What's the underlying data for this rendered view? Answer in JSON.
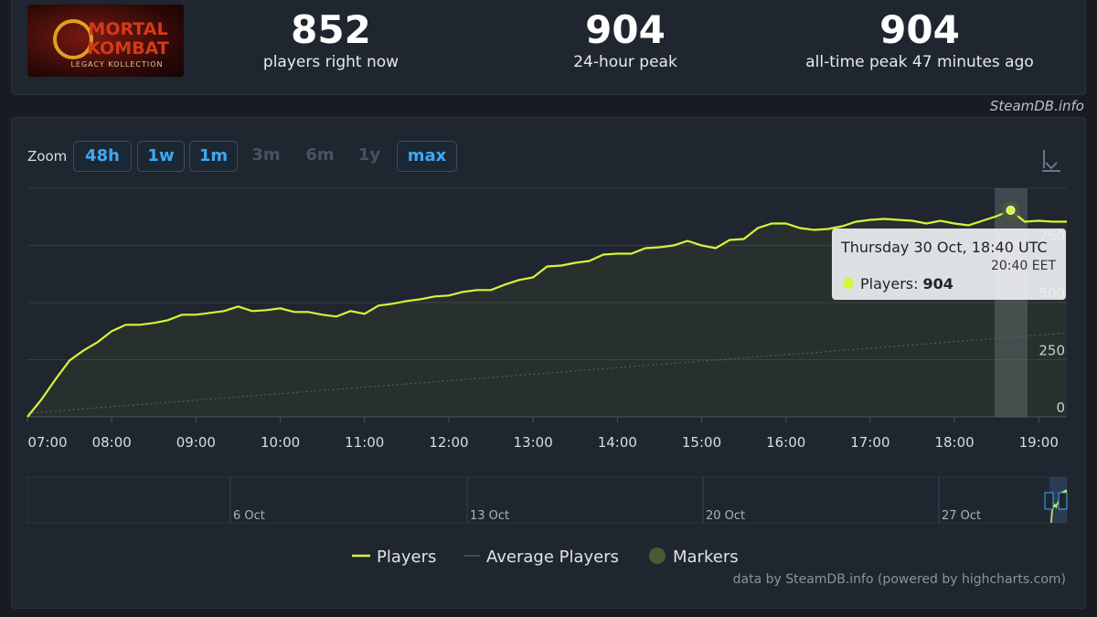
{
  "logo": {
    "line1": "MORTAL",
    "line2": "KOMBAT",
    "line3": "LEGACY KOLLECTION"
  },
  "stats": [
    {
      "value": 852,
      "label": "players right now"
    },
    {
      "value": 904,
      "label": "24-hour peak"
    },
    {
      "value": 904,
      "label": "all-time peak 47 minutes ago"
    }
  ],
  "source": "SteamDB.info",
  "zoom": {
    "label": "Zoom",
    "buttons": [
      {
        "label": "48h",
        "enabled": true
      },
      {
        "label": "1w",
        "enabled": true
      },
      {
        "label": "1m",
        "enabled": true
      },
      {
        "label": "3m",
        "enabled": false
      },
      {
        "label": "6m",
        "enabled": false
      },
      {
        "label": "1y",
        "enabled": false
      },
      {
        "label": "max",
        "enabled": true
      }
    ]
  },
  "chart_data": {
    "type": "line",
    "x": [
      "07:00",
      "07:10",
      "07:20",
      "07:30",
      "07:40",
      "07:50",
      "08:00",
      "08:10",
      "08:20",
      "08:30",
      "08:40",
      "08:50",
      "09:00",
      "09:10",
      "09:20",
      "09:30",
      "09:40",
      "09:50",
      "10:00",
      "10:10",
      "10:20",
      "10:30",
      "10:40",
      "10:50",
      "11:00",
      "11:10",
      "11:20",
      "11:30",
      "11:40",
      "11:50",
      "12:00",
      "12:10",
      "12:20",
      "12:30",
      "12:40",
      "12:50",
      "13:00",
      "13:10",
      "13:20",
      "13:30",
      "13:40",
      "13:50",
      "14:00",
      "14:10",
      "14:20",
      "14:30",
      "14:40",
      "14:50",
      "15:00",
      "15:10",
      "15:20",
      "15:30",
      "15:40",
      "15:50",
      "16:00",
      "16:10",
      "16:20",
      "16:30",
      "16:40",
      "16:50",
      "17:00",
      "17:10",
      "17:20",
      "17:30",
      "17:40",
      "17:50",
      "18:00",
      "18:10",
      "18:20",
      "18:30",
      "18:40",
      "18:50",
      "19:00",
      "19:10",
      "19:20"
    ],
    "series": [
      {
        "name": "Players",
        "color": "#d4f53a",
        "values": [
          0,
          76,
          164,
          247,
          291,
          327,
          375,
          403,
          403,
          411,
          423,
          447,
          447,
          455,
          463,
          483,
          463,
          467,
          475,
          459,
          459,
          447,
          439,
          463,
          451,
          487,
          495,
          507,
          515,
          527,
          531,
          547,
          555,
          555,
          579,
          599,
          610,
          658,
          662,
          674,
          682,
          710,
          714,
          714,
          738,
          742,
          750,
          770,
          750,
          738,
          774,
          778,
          826,
          846,
          846,
          826,
          818,
          822,
          834,
          854,
          862,
          866,
          862,
          858,
          846,
          858,
          846,
          838,
          858,
          878,
          904,
          854,
          858,
          854,
          854
        ]
      },
      {
        "name": "Average Players",
        "color": "#5a6470",
        "values": [
          16,
          21,
          25,
          30,
          35,
          40,
          44,
          49,
          54,
          59,
          63,
          68,
          73,
          78,
          82,
          87,
          92,
          97,
          101,
          106,
          111,
          116,
          120,
          125,
          130,
          135,
          139,
          144,
          149,
          153,
          158,
          163,
          168,
          172,
          177,
          182,
          187,
          191,
          196,
          201,
          206,
          210,
          215,
          220,
          225,
          229,
          234,
          239,
          244,
          248,
          253,
          258,
          263,
          267,
          272,
          277,
          281,
          286,
          291,
          296,
          300,
          305,
          310,
          315,
          319,
          324,
          329,
          334,
          338,
          343,
          348,
          353,
          357,
          362,
          367
        ]
      }
    ],
    "markers": {
      "name": "Markers",
      "color": "#4b5a32"
    },
    "ylim": [
      0,
      1000
    ],
    "yticks": [
      0,
      250,
      500,
      750
    ],
    "xticks": [
      "07:00",
      "08:00",
      "09:00",
      "10:00",
      "11:00",
      "12:00",
      "13:00",
      "14:00",
      "15:00",
      "16:00",
      "17:00",
      "18:00",
      "19:00"
    ],
    "grid": true,
    "tooltip": {
      "title": "Thursday 30 Oct, 18:40 UTC",
      "subtitle": "20:40 EET",
      "label": "Players:"
    },
    "navigator": [
      "6 Oct",
      "13 Oct",
      "20 Oct",
      "27 Oct"
    ],
    "credits": "data by SteamDB.info (powered by highcharts.com)"
  }
}
